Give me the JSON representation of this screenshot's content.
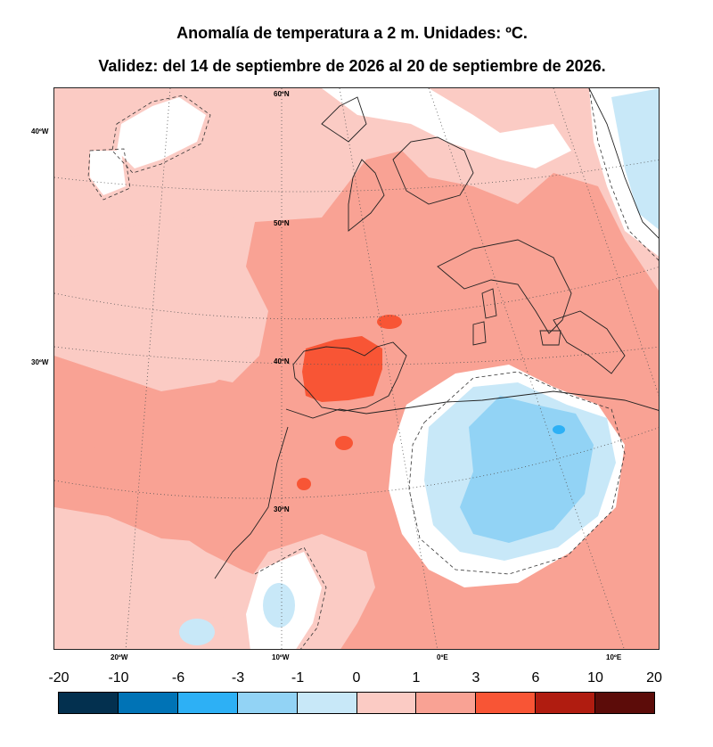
{
  "title": "Anomalía de temperatura a 2 m. Unidades: ºC.",
  "subtitle": "Validez: del 14 de septiembre de 2026 al 20 de septiembre de 2026.",
  "latitude_labels": [
    "60ºN",
    "50ºN",
    "40ºN",
    "30ºN"
  ],
  "left_axis_labels": [
    "40ºW",
    "30ºW"
  ],
  "bottom_axis_labels": [
    "20ºW",
    "10ºW",
    "0ºE",
    "10ºE"
  ],
  "colorbar": {
    "levels": [
      "-20",
      "-10",
      "-6",
      "-3",
      "-1",
      "0",
      "1",
      "3",
      "6",
      "10",
      "20"
    ],
    "colors": [
      "#03304f",
      "#0073b6",
      "#2db0f5",
      "#92d3f5",
      "#c8e8f8",
      "#fbcbc4",
      "#f9a294",
      "#f85535",
      "#b01c10",
      "#5c0c09"
    ]
  },
  "map_colors": {
    "land_outline": "#222222",
    "graticule": "#555555",
    "neutral": "#ffffff"
  }
}
